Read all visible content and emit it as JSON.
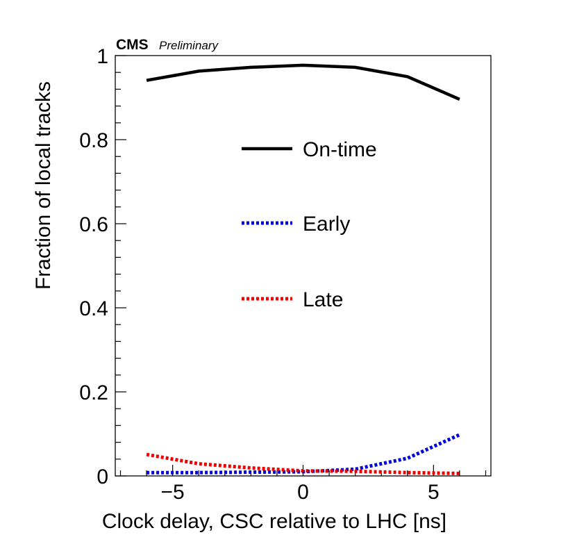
{
  "header": {
    "experiment": "CMS",
    "status": "Preliminary"
  },
  "chart_data": {
    "type": "line",
    "title": "",
    "xlabel": "Clock delay, CSC relative to LHC [ns]",
    "ylabel": "Fraction of local tracks",
    "xlim": [
      -7.2,
      7.2
    ],
    "ylim": [
      0,
      1
    ],
    "grid": false,
    "legend_position": "upper-center",
    "x_ticks": [
      {
        "value": -5,
        "label": "−5"
      },
      {
        "value": 0,
        "label": "0"
      },
      {
        "value": 5,
        "label": "5"
      }
    ],
    "y_ticks": [
      {
        "value": 0,
        "label": "0"
      },
      {
        "value": 0.2,
        "label": "0.2"
      },
      {
        "value": 0.4,
        "label": "0.4"
      },
      {
        "value": 0.6,
        "label": "0.6"
      },
      {
        "value": 0.8,
        "label": "0.8"
      },
      {
        "value": 1,
        "label": "1"
      }
    ],
    "x": [
      -6,
      -4,
      -2,
      0,
      2,
      4,
      6
    ],
    "series": [
      {
        "name": "On-time",
        "color": "#000000",
        "style": "solid",
        "values": [
          0.941,
          0.963,
          0.972,
          0.977,
          0.972,
          0.95,
          0.896
        ]
      },
      {
        "name": "Early",
        "color": "#0000dd",
        "style": "dotted",
        "values": [
          0.008,
          0.008,
          0.009,
          0.01,
          0.016,
          0.042,
          0.098
        ]
      },
      {
        "name": "Late",
        "color": "#ee0000",
        "style": "dotted",
        "values": [
          0.051,
          0.029,
          0.019,
          0.012,
          0.011,
          0.008,
          0.006
        ]
      }
    ]
  }
}
